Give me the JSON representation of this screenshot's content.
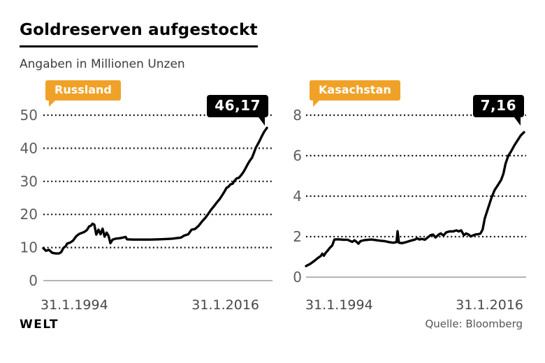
{
  "header": {
    "title": "Goldreserven aufgestockt",
    "subtitle": "Angaben in Millionen Unzen"
  },
  "footer": {
    "brand": "WELT",
    "source": "Quelle: Bloomberg"
  },
  "colors": {
    "accent_orange": "#F0A228",
    "label_black": "#000000",
    "series_line": "#000000",
    "grid_dots": "#121212",
    "axis_gray": "#9b9b9b",
    "tick_text": "#5d5d5d"
  },
  "chart_data": [
    {
      "type": "line",
      "country_label": "Russland",
      "end_value_label": "46,17",
      "end_value": 46.17,
      "unit": "Millionen Unzen",
      "ylim": [
        0,
        50
      ],
      "yticks": [
        0,
        10,
        20,
        30,
        40,
        50
      ],
      "grid": "horizontal-dotted",
      "legend_position": "top-left-flag",
      "x_axis_labels": [
        "31.1.1994",
        "31.1.2016"
      ],
      "series": [
        {
          "name": "Goldreserven Russland",
          "points": [
            [
              0,
              9.8
            ],
            [
              0.012,
              9.0
            ],
            [
              0.025,
              9.3
            ],
            [
              0.04,
              8.4
            ],
            [
              0.055,
              8.2
            ],
            [
              0.07,
              8.2
            ],
            [
              0.08,
              8.6
            ],
            [
              0.09,
              9.9
            ],
            [
              0.1,
              10.4
            ],
            [
              0.107,
              11.2
            ],
            [
              0.12,
              11.5
            ],
            [
              0.133,
              12.1
            ],
            [
              0.147,
              13.4
            ],
            [
              0.16,
              14.1
            ],
            [
              0.172,
              14.4
            ],
            [
              0.183,
              14.7
            ],
            [
              0.195,
              15.3
            ],
            [
              0.205,
              16.4
            ],
            [
              0.213,
              16.6
            ],
            [
              0.22,
              17.2
            ],
            [
              0.228,
              16.9
            ],
            [
              0.237,
              13.9
            ],
            [
              0.247,
              15.4
            ],
            [
              0.256,
              14.0
            ],
            [
              0.265,
              15.7
            ],
            [
              0.274,
              13.3
            ],
            [
              0.283,
              14.5
            ],
            [
              0.292,
              13.5
            ],
            [
              0.3,
              11.3
            ],
            [
              0.31,
              12.4
            ],
            [
              0.325,
              12.7
            ],
            [
              0.34,
              12.8
            ],
            [
              0.355,
              13.0
            ],
            [
              0.368,
              13.2
            ],
            [
              0.374,
              12.5
            ],
            [
              0.4,
              12.4
            ],
            [
              0.44,
              12.4
            ],
            [
              0.48,
              12.4
            ],
            [
              0.52,
              12.5
            ],
            [
              0.555,
              12.6
            ],
            [
              0.58,
              12.7
            ],
            [
              0.6,
              12.9
            ],
            [
              0.615,
              13.0
            ],
            [
              0.63,
              13.6
            ],
            [
              0.648,
              14.0
            ],
            [
              0.663,
              15.4
            ],
            [
              0.678,
              15.6
            ],
            [
              0.695,
              16.6
            ],
            [
              0.71,
              17.9
            ],
            [
              0.725,
              19.0
            ],
            [
              0.737,
              20.1
            ],
            [
              0.75,
              21.4
            ],
            [
              0.763,
              22.5
            ],
            [
              0.776,
              23.6
            ],
            [
              0.788,
              24.6
            ],
            [
              0.8,
              25.8
            ],
            [
              0.81,
              26.9
            ],
            [
              0.82,
              28.1
            ],
            [
              0.827,
              28.3
            ],
            [
              0.837,
              29.1
            ],
            [
              0.847,
              29.3
            ],
            [
              0.855,
              30.2
            ],
            [
              0.865,
              30.9
            ],
            [
              0.875,
              31.1
            ],
            [
              0.885,
              31.9
            ],
            [
              0.895,
              32.8
            ],
            [
              0.905,
              34.0
            ],
            [
              0.915,
              35.3
            ],
            [
              0.925,
              36.4
            ],
            [
              0.933,
              37.1
            ],
            [
              0.942,
              38.6
            ],
            [
              0.95,
              40.1
            ],
            [
              0.958,
              41.1
            ],
            [
              0.967,
              42.2
            ],
            [
              0.977,
              43.6
            ],
            [
              0.987,
              44.9
            ],
            [
              1,
              46.17
            ]
          ]
        }
      ]
    },
    {
      "type": "line",
      "country_label": "Kasachstan",
      "end_value_label": "7,16",
      "end_value": 7.16,
      "unit": "Millionen Unzen",
      "ylim": [
        0,
        8
      ],
      "yticks": [
        0,
        2,
        4,
        6,
        8
      ],
      "grid": "horizontal-dotted",
      "legend_position": "top-left-flag",
      "x_axis_labels": [
        "31.1.1994",
        "31.1.2016"
      ],
      "series": [
        {
          "name": "Goldreserven Kasachstan",
          "points": [
            [
              0,
              0.55
            ],
            [
              0.02,
              0.66
            ],
            [
              0.04,
              0.82
            ],
            [
              0.055,
              0.95
            ],
            [
              0.068,
              1.05
            ],
            [
              0.075,
              1.16
            ],
            [
              0.082,
              1.06
            ],
            [
              0.09,
              1.2
            ],
            [
              0.1,
              1.32
            ],
            [
              0.11,
              1.46
            ],
            [
              0.12,
              1.56
            ],
            [
              0.13,
              1.86
            ],
            [
              0.15,
              1.87
            ],
            [
              0.17,
              1.85
            ],
            [
              0.19,
              1.85
            ],
            [
              0.202,
              1.79
            ],
            [
              0.212,
              1.74
            ],
            [
              0.222,
              1.82
            ],
            [
              0.232,
              1.74
            ],
            [
              0.24,
              1.65
            ],
            [
              0.25,
              1.78
            ],
            [
              0.27,
              1.83
            ],
            [
              0.3,
              1.86
            ],
            [
              0.32,
              1.83
            ],
            [
              0.34,
              1.8
            ],
            [
              0.36,
              1.78
            ],
            [
              0.38,
              1.73
            ],
            [
              0.4,
              1.7
            ],
            [
              0.415,
              1.73
            ],
            [
              0.42,
              2.27
            ],
            [
              0.426,
              1.7
            ],
            [
              0.44,
              1.68
            ],
            [
              0.46,
              1.73
            ],
            [
              0.48,
              1.8
            ],
            [
              0.5,
              1.86
            ],
            [
              0.51,
              1.92
            ],
            [
              0.52,
              1.86
            ],
            [
              0.53,
              1.89
            ],
            [
              0.545,
              1.85
            ],
            [
              0.558,
              1.96
            ],
            [
              0.572,
              2.08
            ],
            [
              0.583,
              2.1
            ],
            [
              0.594,
              1.96
            ],
            [
              0.608,
              2.1
            ],
            [
              0.618,
              2.16
            ],
            [
              0.63,
              2.06
            ],
            [
              0.643,
              2.21
            ],
            [
              0.658,
              2.26
            ],
            [
              0.675,
              2.26
            ],
            [
              0.69,
              2.31
            ],
            [
              0.7,
              2.26
            ],
            [
              0.712,
              2.31
            ],
            [
              0.724,
              2.07
            ],
            [
              0.734,
              2.16
            ],
            [
              0.745,
              2.11
            ],
            [
              0.755,
              2.01
            ],
            [
              0.765,
              2.06
            ],
            [
              0.778,
              2.11
            ],
            [
              0.79,
              2.12
            ],
            [
              0.8,
              2.15
            ],
            [
              0.81,
              2.35
            ],
            [
              0.82,
              2.9
            ],
            [
              0.835,
              3.4
            ],
            [
              0.85,
              3.9
            ],
            [
              0.865,
              4.3
            ],
            [
              0.88,
              4.55
            ],
            [
              0.895,
              4.8
            ],
            [
              0.905,
              5.1
            ],
            [
              0.915,
              5.6
            ],
            [
              0.928,
              6.0
            ],
            [
              0.94,
              6.2
            ],
            [
              0.955,
              6.5
            ],
            [
              0.97,
              6.75
            ],
            [
              0.985,
              7.0
            ],
            [
              1,
              7.16
            ]
          ]
        }
      ]
    }
  ]
}
